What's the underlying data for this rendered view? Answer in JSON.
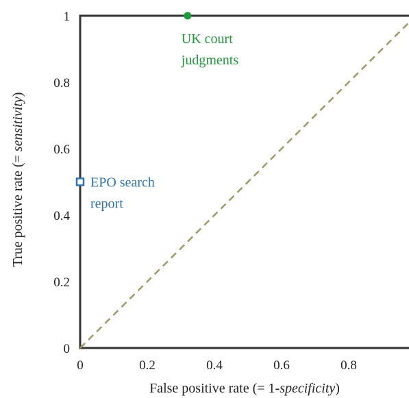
{
  "chart_data": {
    "type": "scatter",
    "title": "",
    "xlabel_prefix": "False positive rate (= 1-",
    "xlabel_italic": "specificity",
    "xlabel_suffix": ")",
    "ylabel_prefix": "True positive rate (= ",
    "ylabel_italic": "sensitivity",
    "ylabel_suffix": ")",
    "xlim": [
      0,
      1
    ],
    "ylim": [
      0,
      1
    ],
    "x_ticks": [
      {
        "value": 0,
        "label": "0"
      },
      {
        "value": 0.2,
        "label": "0.2"
      },
      {
        "value": 0.4,
        "label": "0.4"
      },
      {
        "value": 0.6,
        "label": "0.6"
      },
      {
        "value": 0.8,
        "label": "0.8"
      }
    ],
    "y_ticks": [
      {
        "value": 0,
        "label": "0"
      },
      {
        "value": 0.2,
        "label": "0.2"
      },
      {
        "value": 0.4,
        "label": "0.4"
      },
      {
        "value": 0.6,
        "label": "0.6"
      },
      {
        "value": 0.8,
        "label": "0.8"
      },
      {
        "value": 1,
        "label": "1"
      }
    ],
    "grid": false,
    "points": [
      {
        "line1": "UK court",
        "line2": "judgments",
        "x": 0.32,
        "y": 1.0,
        "marker": "filled-circle",
        "color": "#1f9a3a"
      },
      {
        "line1": "EPO search",
        "line2": "report",
        "x": 0.0,
        "y": 0.5,
        "marker": "hollow-square",
        "color": "#2e75b6"
      }
    ],
    "reference_line": {
      "from": [
        0,
        0
      ],
      "to": [
        1,
        1
      ],
      "style": "dashed",
      "color": "#9a9a6a"
    }
  }
}
